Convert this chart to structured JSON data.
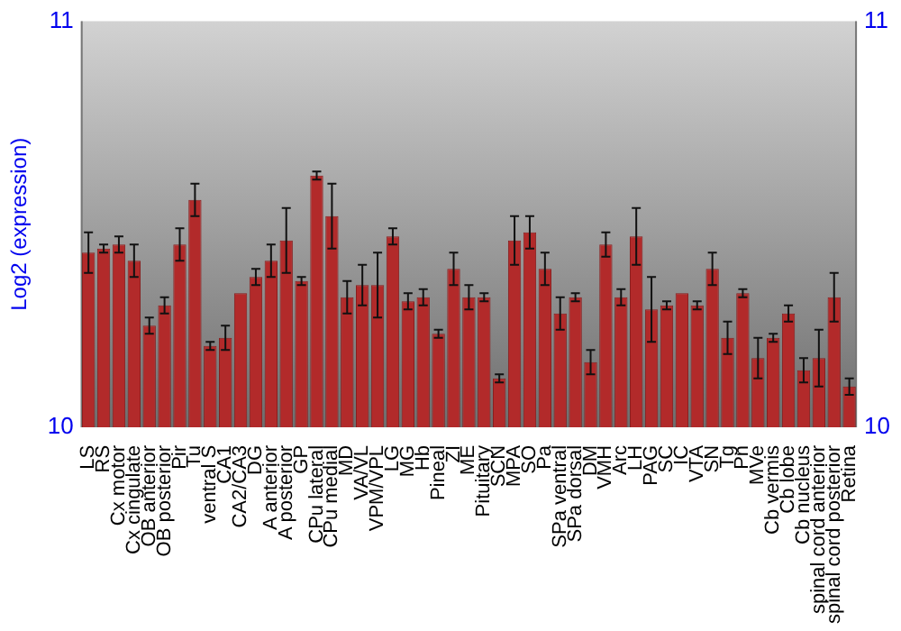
{
  "chart_data": {
    "type": "bar",
    "ylabel": "Log2 (expression)",
    "categories": [
      "LS",
      "RS",
      "Cx motor",
      "Cx cingulate",
      "OB anterior",
      "OB posterior",
      "Pir",
      "Tu",
      "ventral S",
      "CA1",
      "CA2/CA3",
      "DG",
      "A anterior",
      "A posterior",
      "GP",
      "CPu lateral",
      "CPu medial",
      "MD",
      "VA/VL",
      "VPM/VPL",
      "LG",
      "MG",
      "Hb",
      "Pineal",
      "ZI",
      "ME",
      "Pituitary",
      "SCN",
      "MPA",
      "SO",
      "Pa",
      "SPa ventral",
      "SPa dorsal",
      "DM",
      "VMH",
      "Arc",
      "LH",
      "PAG",
      "SC",
      "IC",
      "VTA",
      "SN",
      "Tg",
      "Pn",
      "MVe",
      "Cb vermis",
      "Cb lobe",
      "Cb nucleus",
      "spinal cord anterior",
      "spinal cord posterior",
      "Retina"
    ],
    "values": [
      10.43,
      10.44,
      10.45,
      10.41,
      10.25,
      10.3,
      10.45,
      10.56,
      10.2,
      10.22,
      10.33,
      10.37,
      10.41,
      10.46,
      10.36,
      10.62,
      10.52,
      10.32,
      10.35,
      10.35,
      10.47,
      10.31,
      10.32,
      10.23,
      10.39,
      10.32,
      10.32,
      10.12,
      10.46,
      10.48,
      10.39,
      10.28,
      10.32,
      10.16,
      10.45,
      10.32,
      10.47,
      10.29,
      10.3,
      10.33,
      10.3,
      10.39,
      10.22,
      10.33,
      10.17,
      10.22,
      10.28,
      10.14,
      10.17,
      10.32,
      10.1
    ],
    "errors": [
      0.05,
      0.01,
      0.02,
      0.04,
      0.02,
      0.02,
      0.04,
      0.04,
      0.01,
      0.03,
      null,
      0.02,
      0.04,
      0.08,
      0.01,
      0.01,
      0.08,
      0.04,
      0.05,
      0.08,
      0.02,
      0.02,
      0.02,
      0.01,
      0.04,
      0.03,
      0.01,
      0.01,
      0.06,
      0.04,
      0.04,
      0.04,
      0.01,
      0.03,
      0.03,
      0.02,
      0.07,
      0.08,
      0.01,
      null,
      0.01,
      0.04,
      0.04,
      0.01,
      0.05,
      0.01,
      0.02,
      0.03,
      0.07,
      0.06,
      0.02
    ],
    "color": "#b22a2a",
    "ylim": [
      10,
      11
    ],
    "yticks": [
      10,
      11
    ],
    "y2lim": [
      10,
      11
    ],
    "y2ticks": [
      10,
      11
    ],
    "grid": false,
    "legend": false
  }
}
